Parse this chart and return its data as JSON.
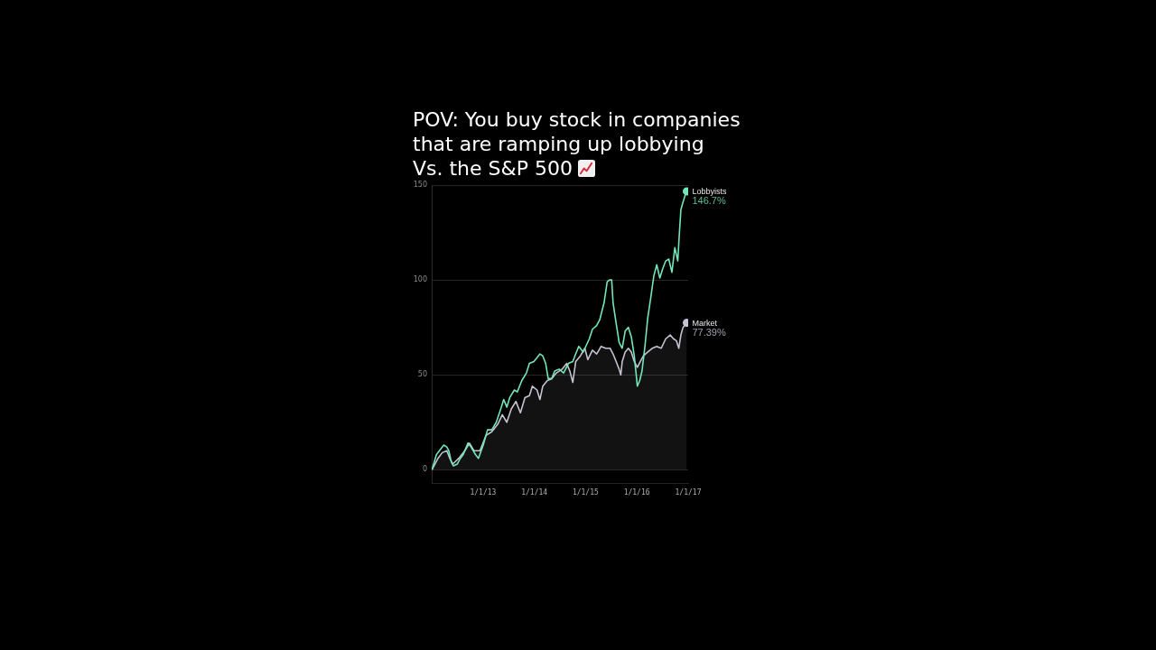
{
  "chart_data": {
    "type": "line",
    "title": "POV: You buy stock in companies\nthat are ramping up lobbying\nVs. the S&P 500",
    "xlim": [
      "2012-01-01",
      "2017-01-01"
    ],
    "xticks": [
      {
        "value": "2013-01-01",
        "label": "1/1/13"
      },
      {
        "value": "2014-01-01",
        "label": "1/1/14"
      },
      {
        "value": "2015-01-01",
        "label": "1/1/15"
      },
      {
        "value": "2016-01-01",
        "label": "1/1/16"
      },
      {
        "value": "2017-01-01",
        "label": "1/1/17"
      }
    ],
    "ylim": [
      -7,
      150
    ],
    "yticks": [
      0,
      50,
      100,
      150
    ],
    "grid": "y",
    "series": [
      {
        "name": "Lobbyists",
        "color": "#72e6b8",
        "x": [
          "2012-01-03",
          "2012-02-04",
          "2012-03-06",
          "2012-03-27",
          "2012-04-18",
          "2012-05-02",
          "2012-05-20",
          "2012-06-04",
          "2012-07-02",
          "2012-07-23",
          "2012-08-13",
          "2012-09-15",
          "2012-10-07",
          "2012-11-08",
          "2012-11-29",
          "2013-01-02",
          "2013-02-02",
          "2013-03-04",
          "2013-04-05",
          "2013-05-07",
          "2013-05-28",
          "2013-06-19",
          "2013-07-10",
          "2013-08-12",
          "2013-09-02",
          "2013-10-04",
          "2013-11-06",
          "2013-11-27",
          "2013-12-29",
          "2014-01-20",
          "2014-02-10",
          "2014-03-02",
          "2014-03-23",
          "2014-04-10",
          "2014-05-05",
          "2014-05-26",
          "2014-06-27",
          "2014-07-29",
          "2014-09-01",
          "2014-10-02",
          "2014-10-23",
          "2014-11-14",
          "2014-12-15",
          "2015-01-28",
          "2015-02-19",
          "2015-03-21",
          "2015-04-12",
          "2015-05-13",
          "2015-06-04",
          "2015-06-21",
          "2015-07-06",
          "2015-07-16",
          "2015-08-07",
          "2015-08-18",
          "2015-08-28",
          "2015-09-19",
          "2015-10-10",
          "2015-11-02",
          "2015-11-23",
          "2015-12-14",
          "2016-01-05",
          "2016-01-22",
          "2016-02-07",
          "2016-02-28",
          "2016-03-19",
          "2016-04-10",
          "2016-05-01",
          "2016-05-22",
          "2016-06-13",
          "2016-07-04",
          "2016-07-25",
          "2016-08-16",
          "2016-09-07",
          "2016-09-28",
          "2016-10-19",
          "2016-10-29",
          "2016-11-10",
          "2016-11-25",
          "2016-12-12",
          "2016-12-22"
        ],
        "values": [
          0,
          8,
          11,
          13,
          12,
          10,
          4,
          2,
          3,
          6,
          8,
          14,
          12,
          8,
          6,
          13,
          21,
          21,
          25,
          32,
          37,
          33,
          38,
          42,
          41,
          47,
          51,
          56,
          57,
          59,
          61,
          60,
          56,
          48,
          48,
          52,
          53,
          51,
          56,
          57,
          61,
          65,
          62,
          69,
          74,
          76,
          79,
          88,
          99,
          100,
          100,
          88,
          77,
          72,
          67,
          64,
          73,
          75,
          70,
          60,
          44,
          47,
          52,
          65,
          80,
          91,
          102,
          108,
          101,
          106,
          110,
          111,
          104,
          117,
          110,
          123,
          137,
          141,
          145,
          146.7
        ],
        "value_labels": [
          null,
          null,
          null,
          null,
          null,
          null,
          null,
          null,
          null,
          null,
          null,
          null,
          null,
          null,
          null,
          null,
          null,
          null,
          null,
          null,
          null,
          null,
          null,
          null,
          null,
          null,
          null,
          null,
          null,
          null,
          null,
          null,
          null,
          null,
          null,
          null,
          null,
          null,
          null,
          null,
          null,
          null,
          null,
          null,
          null,
          null,
          null,
          null,
          null,
          null,
          null,
          null,
          null,
          null,
          null,
          null,
          null,
          null,
          null,
          null,
          null,
          null,
          null,
          null,
          null,
          null,
          null,
          null,
          null,
          null,
          null,
          null,
          null,
          null,
          null,
          null,
          null,
          null,
          null,
          "146.7%"
        ]
      },
      {
        "name": "Market",
        "type": "area",
        "color": "#c4c4d2",
        "x": [
          "2012-01-03",
          "2012-02-15",
          "2012-03-16",
          "2012-04-18",
          "2012-05-09",
          "2012-05-30",
          "2012-07-12",
          "2012-08-24",
          "2012-09-26",
          "2012-10-28",
          "2012-12-10",
          "2013-01-21",
          "2013-03-04",
          "2013-04-16",
          "2013-05-18",
          "2013-06-19",
          "2013-07-21",
          "2013-08-23",
          "2013-09-24",
          "2013-10-26",
          "2013-11-27",
          "2013-12-18",
          "2014-01-20",
          "2014-02-10",
          "2014-03-02",
          "2014-04-04",
          "2014-05-05",
          "2014-06-07",
          "2014-07-18",
          "2014-08-20",
          "2014-09-11",
          "2014-10-02",
          "2014-10-23",
          "2014-11-25",
          "2014-12-27",
          "2015-01-17",
          "2015-02-19",
          "2015-03-21",
          "2015-04-22",
          "2015-05-24",
          "2015-06-25",
          "2015-07-16",
          "2015-08-07",
          "2015-08-28",
          "2015-09-09",
          "2015-09-19",
          "2015-10-10",
          "2015-11-02",
          "2015-11-23",
          "2015-12-14",
          "2016-01-05",
          "2016-01-26",
          "2016-02-17",
          "2016-03-19",
          "2016-04-20",
          "2016-05-22",
          "2016-06-23",
          "2016-07-25",
          "2016-08-26",
          "2016-09-18",
          "2016-10-09",
          "2016-10-26",
          "2016-11-10",
          "2016-11-25",
          "2016-12-22"
        ],
        "values": [
          0,
          6,
          9,
          10,
          6,
          3,
          6,
          10,
          14,
          10,
          10,
          18,
          20,
          24,
          29,
          25,
          32,
          36,
          30,
          38,
          39,
          44,
          42,
          37,
          44,
          47,
          48,
          51,
          53,
          56,
          52,
          46,
          57,
          60,
          64,
          58,
          63,
          61,
          65,
          64,
          64,
          61,
          57,
          53,
          50,
          57,
          62,
          64,
          62,
          57,
          54,
          57,
          60,
          62,
          64,
          65,
          64,
          69,
          71,
          69,
          68,
          64,
          71,
          75,
          77.39
        ],
        "value_labels": [
          null,
          null,
          null,
          null,
          null,
          null,
          null,
          null,
          null,
          null,
          null,
          null,
          null,
          null,
          null,
          null,
          null,
          null,
          null,
          null,
          null,
          null,
          null,
          null,
          null,
          null,
          null,
          null,
          null,
          null,
          null,
          null,
          null,
          null,
          null,
          null,
          null,
          null,
          null,
          null,
          null,
          null,
          null,
          null,
          null,
          null,
          null,
          null,
          null,
          null,
          null,
          null,
          null,
          null,
          null,
          null,
          null,
          null,
          null,
          null,
          null,
          null,
          null,
          null,
          "77.39%"
        ]
      }
    ]
  }
}
